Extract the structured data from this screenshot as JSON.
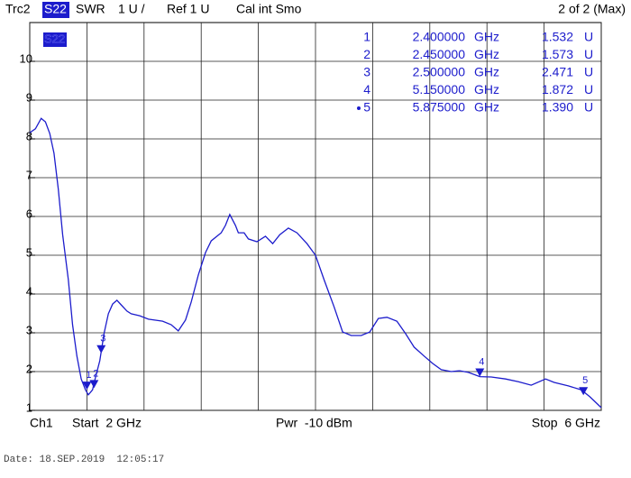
{
  "header": {
    "trace": "Trc2",
    "param": "S22",
    "format": "SWR",
    "scale": "1 U /",
    "ref": "Ref 1 U",
    "cal": "Cal int Smo",
    "page": "2 of 2 (Max)"
  },
  "chart_data": {
    "type": "line",
    "color": "#1c1ccc",
    "grid": true,
    "xlim": [
      2,
      6
    ],
    "xticks": [
      2,
      2.4,
      2.8,
      3.2,
      3.6,
      4,
      4.4,
      4.8,
      5.2,
      5.6,
      6
    ],
    "ylim": [
      1,
      11
    ],
    "yticks": [
      1,
      2,
      3,
      4,
      5,
      6,
      7,
      8,
      9,
      10
    ],
    "x": [
      2.0,
      2.04,
      2.08,
      2.11,
      2.14,
      2.17,
      2.2,
      2.23,
      2.27,
      2.3,
      2.33,
      2.36,
      2.39,
      2.41,
      2.44,
      2.45,
      2.49,
      2.52,
      2.55,
      2.58,
      2.61,
      2.64,
      2.68,
      2.71,
      2.77,
      2.83,
      2.93,
      2.99,
      3.04,
      3.09,
      3.13,
      3.18,
      3.23,
      3.27,
      3.34,
      3.37,
      3.4,
      3.44,
      3.46,
      3.5,
      3.53,
      3.59,
      3.65,
      3.7,
      3.75,
      3.81,
      3.87,
      3.94,
      4.0,
      4.06,
      4.13,
      4.19,
      4.25,
      4.32,
      4.38,
      4.44,
      4.5,
      4.57,
      4.63,
      4.69,
      4.76,
      4.82,
      4.88,
      4.95,
      5.01,
      5.07,
      5.15,
      5.23,
      5.33,
      5.42,
      5.51,
      5.61,
      5.67,
      5.77,
      5.86,
      5.92,
      6.0
    ],
    "values": [
      8.16,
      8.26,
      8.53,
      8.44,
      8.14,
      7.63,
      6.7,
      5.53,
      4.37,
      3.21,
      2.4,
      1.81,
      1.53,
      1.4,
      1.53,
      1.7,
      2.28,
      2.98,
      3.49,
      3.74,
      3.84,
      3.72,
      3.56,
      3.49,
      3.44,
      3.35,
      3.3,
      3.21,
      3.05,
      3.33,
      3.79,
      4.49,
      5.07,
      5.37,
      5.58,
      5.77,
      6.05,
      5.77,
      5.58,
      5.58,
      5.42,
      5.35,
      5.49,
      5.3,
      5.53,
      5.7,
      5.58,
      5.3,
      5.0,
      4.37,
      3.67,
      3.02,
      2.93,
      2.93,
      3.02,
      3.37,
      3.4,
      3.3,
      2.98,
      2.63,
      2.4,
      2.21,
      2.05,
      2.0,
      2.02,
      1.98,
      1.87,
      1.86,
      1.81,
      1.74,
      1.65,
      1.81,
      1.72,
      1.63,
      1.53,
      1.35,
      1.07
    ],
    "freq_unit": "GHz",
    "value_unit": "U",
    "markers": [
      {
        "label": "1",
        "freq": {
          "value": 2.4,
          "label": "2.400000"
        },
        "value": 1.532,
        "value_label": "1.532",
        "active": false
      },
      {
        "label": "2",
        "freq": {
          "value": 2.45,
          "label": "2.450000"
        },
        "value": 1.573,
        "value_label": "1.573",
        "active": false
      },
      {
        "label": "3",
        "freq": {
          "value": 2.5,
          "label": "2.500000"
        },
        "value": 2.471,
        "value_label": "2.471",
        "active": false
      },
      {
        "label": "4",
        "freq": {
          "value": 5.15,
          "label": "5.150000"
        },
        "value": 1.872,
        "value_label": "1.872",
        "active": false
      },
      {
        "label": "5",
        "freq": {
          "value": 5.875,
          "label": "5.875000"
        },
        "value": 1.39,
        "value_label": "1.390",
        "active": true
      }
    ]
  },
  "footer": {
    "channel": "Ch1",
    "start": "Start  2 GHz",
    "power": "Pwr  -10 dBm",
    "stop": "Stop  6 GHz"
  },
  "timestamp": "Date: 18.SEP.2019  12:05:17"
}
